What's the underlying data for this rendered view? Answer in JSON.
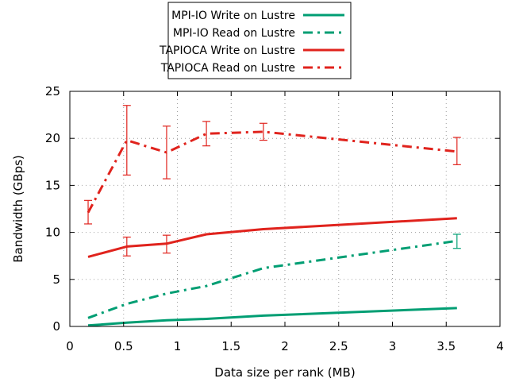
{
  "chart_data": {
    "type": "line",
    "title": "",
    "xlabel": "Data size per rank (MB)",
    "ylabel": "Bandwidth (GBps)",
    "xlim": [
      0,
      4
    ],
    "ylim": [
      0,
      25
    ],
    "xticks": [
      0,
      0.5,
      1,
      1.5,
      2,
      2.5,
      3,
      3.5,
      4
    ],
    "xtick_labels": [
      "0",
      "0.5",
      "1",
      "1.5",
      "2",
      "2.5",
      "3",
      "3.5",
      "4"
    ],
    "yticks": [
      0,
      5,
      10,
      15,
      20,
      25
    ],
    "ytick_labels": [
      "0",
      "5",
      "10",
      "15",
      "20",
      "25"
    ],
    "grid": true,
    "legend_position": "top-center, above plot",
    "series": [
      {
        "name": "MPI-IO Write on Lustre",
        "color": "#009e73",
        "dash": "solid",
        "x": [
          0.17,
          0.53,
          0.9,
          1.27,
          1.8,
          3.6
        ],
        "y": [
          0.1,
          0.4,
          0.65,
          0.8,
          1.15,
          1.95
        ],
        "errors": []
      },
      {
        "name": "MPI-IO Read on Lustre",
        "color": "#009e73",
        "dash": "dashdot",
        "x": [
          0.17,
          0.53,
          0.9,
          1.27,
          1.8,
          3.6
        ],
        "y": [
          0.9,
          2.4,
          3.5,
          4.3,
          6.2,
          9.1
        ],
        "errors": [
          {
            "x": 3.6,
            "low": 8.3,
            "high": 9.8
          }
        ]
      },
      {
        "name": "TAPIOCA Write on Lustre",
        "color": "#e0231d",
        "dash": "solid",
        "x": [
          0.17,
          0.53,
          0.9,
          1.27,
          1.8,
          3.6
        ],
        "y": [
          7.4,
          8.5,
          8.8,
          9.8,
          10.35,
          11.5
        ],
        "errors": [
          {
            "x": 0.53,
            "low": 7.5,
            "high": 9.5
          },
          {
            "x": 0.9,
            "low": 7.8,
            "high": 9.7
          }
        ]
      },
      {
        "name": "TAPIOCA Read on Lustre",
        "color": "#e0231d",
        "dash": "dashdot",
        "x": [
          0.17,
          0.53,
          0.9,
          1.27,
          1.8,
          3.6
        ],
        "y": [
          12.1,
          19.8,
          18.5,
          20.5,
          20.7,
          18.6
        ],
        "errors": [
          {
            "x": 0.17,
            "low": 10.9,
            "high": 13.4
          },
          {
            "x": 0.53,
            "low": 16.1,
            "high": 23.5
          },
          {
            "x": 0.9,
            "low": 15.7,
            "high": 21.3
          },
          {
            "x": 1.27,
            "low": 19.2,
            "high": 21.8
          },
          {
            "x": 1.8,
            "low": 19.8,
            "high": 21.6
          },
          {
            "x": 3.6,
            "low": 17.2,
            "high": 20.1
          }
        ]
      }
    ]
  }
}
